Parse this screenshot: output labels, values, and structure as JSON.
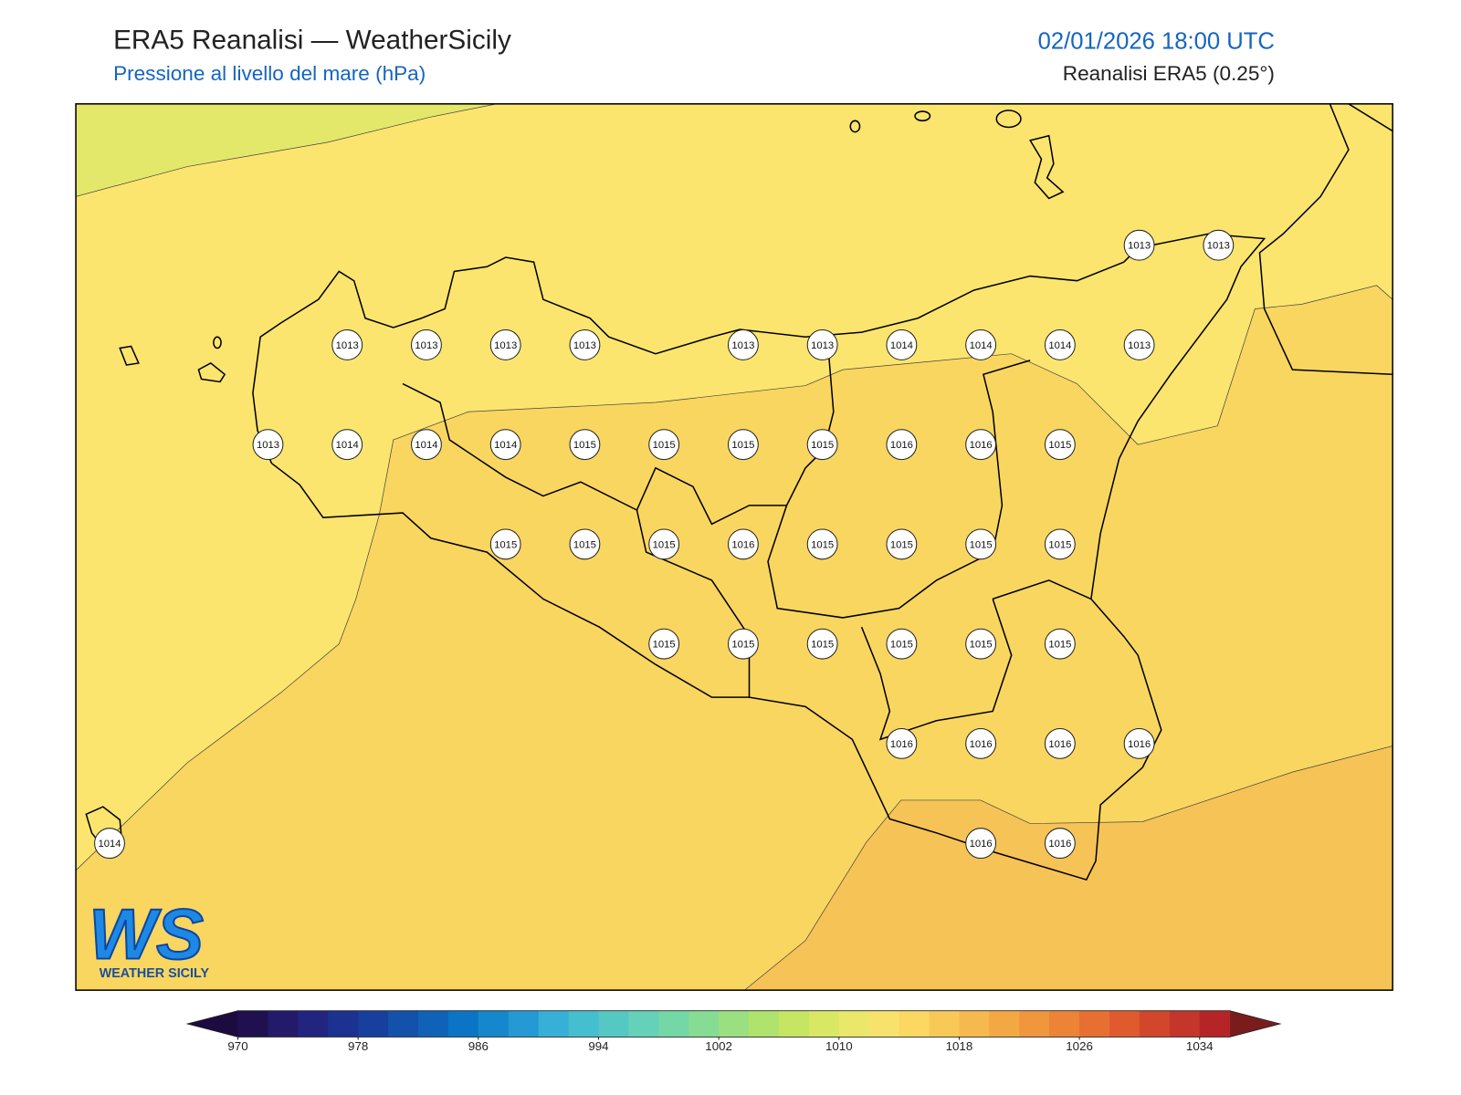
{
  "header": {
    "title": "ERA5 Reanalisi — WeatherSicily",
    "subtitle": "Pressione al livello del mare (hPa)",
    "datetime": "02/01/2026 18:00 UTC",
    "source": "Reanalisi ERA5 (0.25°)"
  },
  "stations": [
    1013,
    1013,
    1013,
    1013,
    1013,
    1013,
    1013,
    1013,
    1014,
    1014,
    1014,
    1013,
    1013,
    1014,
    1014,
    1014,
    1015,
    1015,
    1015,
    1015,
    1016,
    1016,
    1015,
    1015,
    1015,
    1015,
    1016,
    1015,
    1015,
    1015,
    1015,
    1015,
    1015,
    1015,
    1015,
    1015,
    1015,
    1016,
    1016,
    1016,
    1016,
    1014,
    1016,
    1016
  ],
  "colorbar": {
    "vlim": [
      970,
      1036
    ],
    "ticks": [
      970,
      978,
      986,
      994,
      1002,
      1010,
      1018,
      1026,
      1034
    ],
    "under_color": "#1b0b3f",
    "over_color": "#7a1c1c",
    "colors": [
      "#21104f",
      "#241a6a",
      "#222580",
      "#1c3290",
      "#17409e",
      "#1351aa",
      "#0f62b8",
      "#0b74c4",
      "#1587cc",
      "#2499d3",
      "#36b0d6",
      "#45bfcf",
      "#55c8c4",
      "#64d1b8",
      "#74d7a6",
      "#86dc93",
      "#9ae080",
      "#b0e36e",
      "#c6e562",
      "#d9e864",
      "#e9e86a",
      "#f7e36c",
      "#fbd862",
      "#f9c957",
      "#f6b94d",
      "#f4a844",
      "#f0963c",
      "#ec8336",
      "#e66f31",
      "#df5b2e",
      "#d2472c",
      "#c4352a",
      "#b52528"
    ]
  },
  "logo": {
    "mark": "WS",
    "text": "WEATHER SICILY"
  }
}
